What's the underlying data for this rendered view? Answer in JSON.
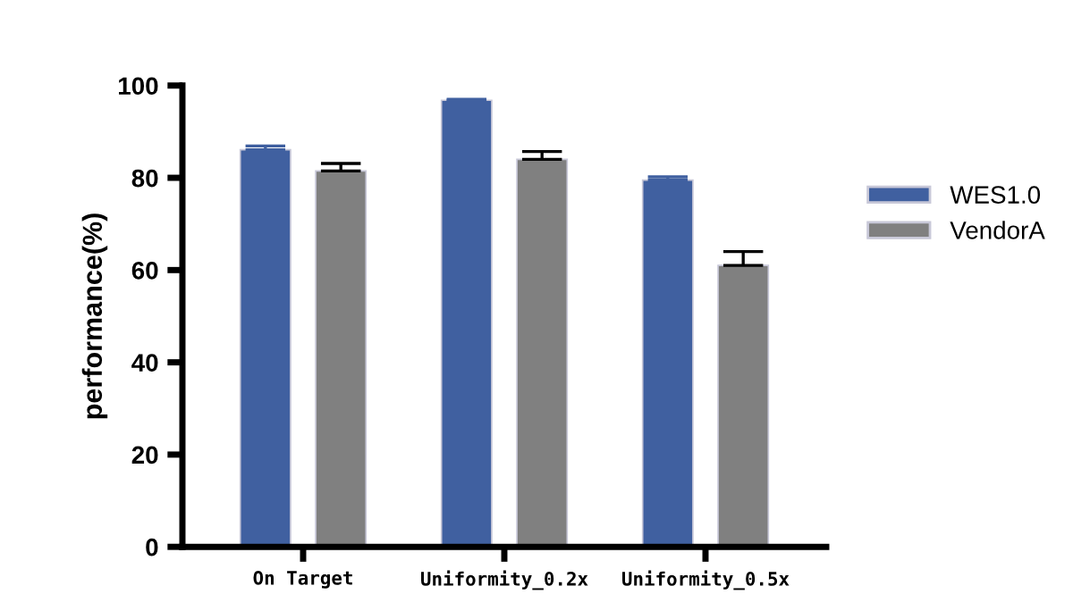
{
  "chart_data": {
    "type": "bar",
    "ylabel": "performance(%)",
    "categories": [
      "On Target",
      "Uniformity_0.2x",
      "Uniformity_0.5x"
    ],
    "series": [
      {
        "name": "WES1.0",
        "color": "#4060a0",
        "values": [
          86.1,
          96.8,
          79.5
        ],
        "errors": [
          [
            86.1,
            86.9
          ],
          [
            96.8,
            97.0
          ],
          [
            79.5,
            80.2
          ]
        ]
      },
      {
        "name": "VendorA",
        "color": "#808080",
        "values": [
          81.5,
          84.0,
          61.0
        ],
        "errors": [
          [
            81.5,
            83.1
          ],
          [
            84.0,
            85.7
          ],
          [
            61.0,
            64.0
          ]
        ]
      }
    ],
    "ylim": [
      0,
      100
    ],
    "yticks": [
      0,
      20,
      40,
      60,
      80,
      100
    ],
    "grid": false,
    "legend": "right"
  }
}
